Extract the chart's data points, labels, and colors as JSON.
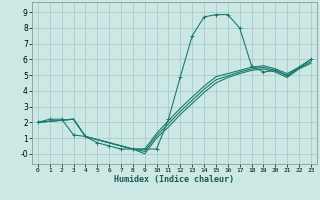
{
  "xlabel": "Humidex (Indice chaleur)",
  "background_color": "#cce8e4",
  "grid_color": "#aacccc",
  "line_color": "#1a7a6e",
  "xlim": [
    -0.5,
    23.5
  ],
  "ylim": [
    -0.65,
    9.65
  ],
  "xticks": [
    0,
    1,
    2,
    3,
    4,
    5,
    6,
    7,
    8,
    9,
    10,
    11,
    12,
    13,
    14,
    15,
    16,
    17,
    18,
    19,
    20,
    21,
    22,
    23
  ],
  "yticks": [
    0,
    1,
    2,
    3,
    4,
    5,
    6,
    7,
    8,
    9
  ],
  "curve_x": [
    0,
    1,
    2,
    3,
    4,
    5,
    6,
    7,
    8,
    9,
    10,
    11,
    12,
    13,
    14,
    15,
    16,
    17,
    18,
    19,
    20,
    21,
    22,
    23
  ],
  "curve_y": [
    2.0,
    2.2,
    2.2,
    1.2,
    1.1,
    0.7,
    0.5,
    0.3,
    0.3,
    0.3,
    0.3,
    2.2,
    4.9,
    7.5,
    8.7,
    8.85,
    8.85,
    8.0,
    5.6,
    5.2,
    5.3,
    5.0,
    5.5,
    6.0
  ],
  "line2_x": [
    0,
    3,
    4,
    5,
    6,
    7,
    8,
    9,
    10,
    11,
    12,
    13,
    14,
    15,
    16,
    17,
    18,
    19,
    20,
    21,
    22,
    23
  ],
  "line2_y": [
    2.0,
    2.2,
    1.1,
    0.9,
    0.7,
    0.5,
    0.3,
    0.3,
    1.3,
    2.1,
    2.9,
    3.6,
    4.3,
    4.9,
    5.1,
    5.3,
    5.5,
    5.6,
    5.4,
    5.1,
    5.5,
    6.0
  ],
  "line3_x": [
    0,
    3,
    4,
    5,
    6,
    7,
    8,
    9,
    10,
    11,
    12,
    13,
    14,
    15,
    16,
    17,
    18,
    19,
    20,
    21,
    22,
    23
  ],
  "line3_y": [
    2.0,
    2.2,
    1.1,
    0.9,
    0.7,
    0.5,
    0.3,
    0.15,
    1.15,
    1.9,
    2.7,
    3.4,
    4.1,
    4.7,
    4.95,
    5.2,
    5.4,
    5.5,
    5.3,
    4.95,
    5.45,
    5.85
  ],
  "line4_x": [
    0,
    3,
    4,
    5,
    6,
    7,
    8,
    9,
    10,
    11,
    12,
    13,
    14,
    15,
    16,
    17,
    18,
    19,
    20,
    21,
    22,
    23
  ],
  "line4_y": [
    2.0,
    2.2,
    1.1,
    0.9,
    0.7,
    0.5,
    0.3,
    0.0,
    1.0,
    1.7,
    2.5,
    3.2,
    3.9,
    4.5,
    4.85,
    5.1,
    5.3,
    5.4,
    5.2,
    4.85,
    5.4,
    5.75
  ]
}
